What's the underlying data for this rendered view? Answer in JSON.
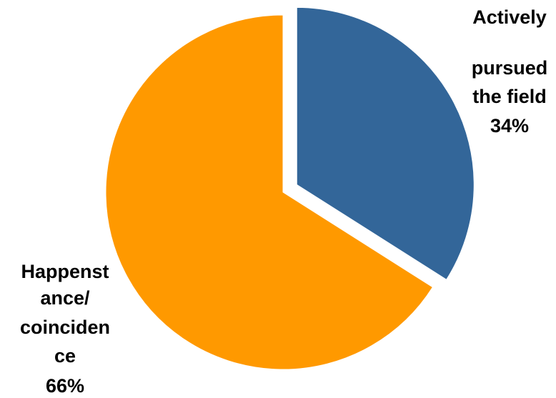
{
  "chart_data": {
    "type": "pie",
    "slices": [
      {
        "label_lines": [
          "Actively",
          "pursued",
          "the field"
        ],
        "value": 34,
        "value_label": "34%",
        "color": "#336699",
        "exploded": true
      },
      {
        "label_lines": [
          "Happenst",
          "ance/",
          "coinciden",
          "ce"
        ],
        "value": 66,
        "value_label": "66%",
        "color": "#FF9900",
        "exploded": false
      }
    ],
    "start_angle_deg": 0,
    "direction": "clockwise",
    "legend": "none"
  }
}
